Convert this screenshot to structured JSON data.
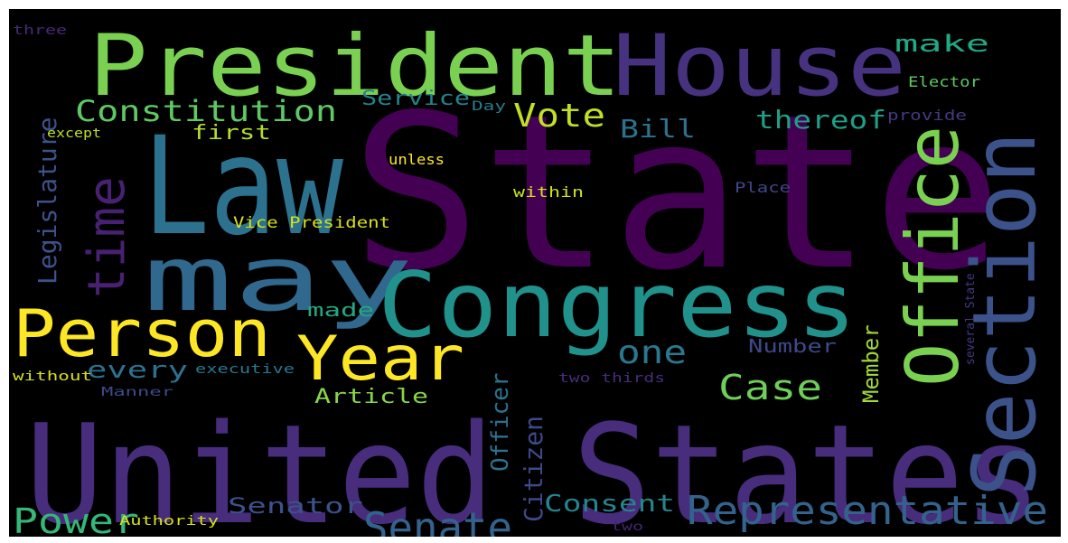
{
  "wordcloud": {
    "background": "#000000",
    "words": [
      {
        "text": "State",
        "color": "#440154"
      },
      {
        "text": "United States",
        "color": "#472d7b"
      },
      {
        "text": "President",
        "color": "#7ad151"
      },
      {
        "text": "House",
        "color": "#46327e"
      },
      {
        "text": "Law",
        "color": "#2c728e"
      },
      {
        "text": "may",
        "color": "#31688e"
      },
      {
        "text": "Congress",
        "color": "#21918c"
      },
      {
        "text": "Section",
        "color": "#3b528b"
      },
      {
        "text": "Office",
        "color": "#7ad151"
      },
      {
        "text": "Person",
        "color": "#fde725"
      },
      {
        "text": "time",
        "color": "#482173"
      },
      {
        "text": "Year",
        "color": "#fde725"
      },
      {
        "text": "Representative",
        "color": "#33638d"
      },
      {
        "text": "Constitution",
        "color": "#5ec962"
      },
      {
        "text": "Senate",
        "color": "#33638d"
      },
      {
        "text": "Legislature",
        "color": "#3b528b"
      },
      {
        "text": "Power",
        "color": "#35b779"
      },
      {
        "text": "Case",
        "color": "#6ece58"
      },
      {
        "text": "Vote",
        "color": "#c2df23"
      },
      {
        "text": "one",
        "color": "#2a788e"
      },
      {
        "text": "Bill",
        "color": "#2c728e"
      },
      {
        "text": "thereof",
        "color": "#1f9f88"
      },
      {
        "text": "make",
        "color": "#22a884"
      },
      {
        "text": "Citizen",
        "color": "#3e4989"
      },
      {
        "text": "Officer",
        "color": "#2c728e"
      },
      {
        "text": "Member",
        "color": "#a0da39"
      },
      {
        "text": "Senator",
        "color": "#3b528b"
      },
      {
        "text": "Consent",
        "color": "#25848e"
      },
      {
        "text": "every",
        "color": "#2c728e"
      },
      {
        "text": "Article",
        "color": "#86d549"
      },
      {
        "text": "Service",
        "color": "#26828e"
      },
      {
        "text": "first",
        "color": "#b5de2b"
      },
      {
        "text": "made",
        "color": "#22a884"
      },
      {
        "text": "Number",
        "color": "#3e4989"
      },
      {
        "text": "Vice President",
        "color": "#d8e219"
      },
      {
        "text": "within",
        "color": "#cae11f"
      },
      {
        "text": "unless",
        "color": "#fde725"
      },
      {
        "text": "Place",
        "color": "#404688"
      },
      {
        "text": "Elector",
        "color": "#5ec962"
      },
      {
        "text": "provide",
        "color": "#443983"
      },
      {
        "text": "Day",
        "color": "#287c8e"
      },
      {
        "text": "except",
        "color": "#bddf26"
      },
      {
        "text": "three",
        "color": "#482878"
      },
      {
        "text": "without",
        "color": "#d8e219"
      },
      {
        "text": "Manner",
        "color": "#3e4989"
      },
      {
        "text": "executive",
        "color": "#2a788e"
      },
      {
        "text": "two thirds",
        "color": "#472d7b"
      },
      {
        "text": "Authority",
        "color": "#d8e219"
      },
      {
        "text": "two",
        "color": "#482475"
      },
      {
        "text": "several State",
        "color": "#443983"
      }
    ]
  }
}
